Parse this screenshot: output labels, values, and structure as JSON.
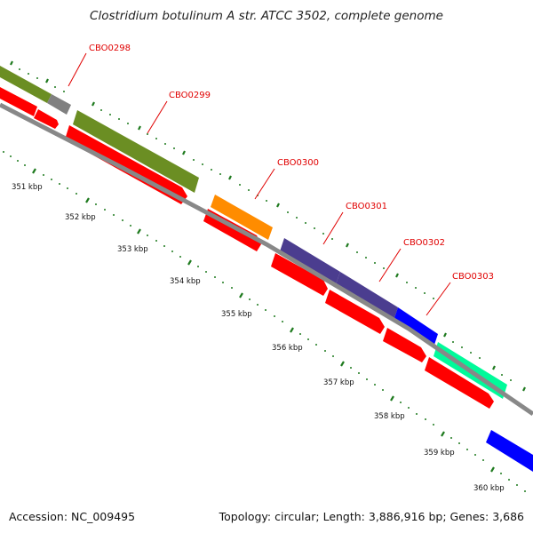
{
  "title": "Clostridium botulinum A str. ATCC 3502, complete genome",
  "footer": {
    "accession": "Accession: NC_009495",
    "summary": "Topology: circular; Length: 3,886,916 bp; Genes: 3,686"
  },
  "colors": {
    "cds": "#ff0000",
    "backbone": "#888888",
    "gene_label": "#e00000",
    "tick": "#128a12",
    "green_tick": "#1e7a1e"
  },
  "gene_labels": [
    "CBO0298",
    "CBO0299",
    "CBO0300",
    "CBO0301",
    "CBO0302",
    "CBO0303"
  ],
  "kbp_ticks": [
    "351 kbp",
    "352 kbp",
    "353 kbp",
    "354 kbp",
    "355 kbp",
    "356 kbp",
    "357 kbp",
    "358 kbp",
    "359 kbp",
    "360 kbp"
  ],
  "cog_features": [
    {
      "color": "#6b8e23",
      "label": "olive"
    },
    {
      "color": "#808080",
      "label": "grey"
    },
    {
      "color": "#ff8c00",
      "label": "orange"
    },
    {
      "color": "#4b3d8f",
      "label": "slate-blue"
    },
    {
      "color": "#0000ff",
      "label": "blue"
    },
    {
      "color": "#00fa9a",
      "label": "spring-green"
    }
  ]
}
